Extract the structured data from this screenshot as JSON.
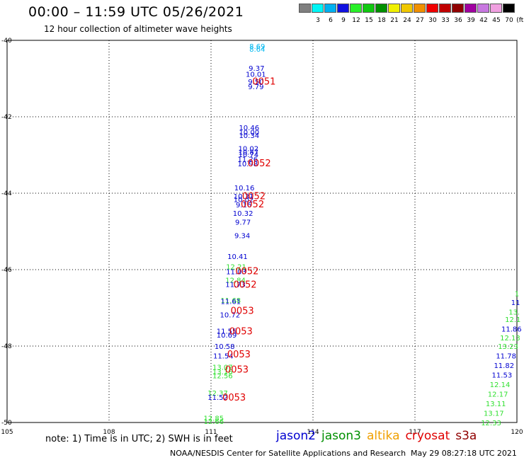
{
  "header": {
    "title": "00:00 – 11:59 UTC 05/26/2021",
    "subtitle": "12 hour collection of altimeter wave heights"
  },
  "colorbar": {
    "unit": "(ft)",
    "items": [
      {
        "label": "",
        "color": "#7f7f7f"
      },
      {
        "label": "3",
        "color": "#00f5f5"
      },
      {
        "label": "6",
        "color": "#00b0f0"
      },
      {
        "label": "9",
        "color": "#1010e0"
      },
      {
        "label": "12",
        "color": "#28f028"
      },
      {
        "label": "15",
        "color": "#10c810"
      },
      {
        "label": "18",
        "color": "#009000"
      },
      {
        "label": "21",
        "color": "#f0f000"
      },
      {
        "label": "24",
        "color": "#f0c800"
      },
      {
        "label": "27",
        "color": "#f09000"
      },
      {
        "label": "30",
        "color": "#f00000"
      },
      {
        "label": "33",
        "color": "#c00000"
      },
      {
        "label": "36",
        "color": "#900000"
      },
      {
        "label": "39",
        "color": "#a000a0"
      },
      {
        "label": "42",
        "color": "#c878e0"
      },
      {
        "label": "45",
        "color": "#f0a0e0"
      },
      {
        "label": "70",
        "color": "#000000"
      }
    ]
  },
  "footer": {
    "note": "note: 1) Time is in UTC; 2) SWH is in feet",
    "credit": "NOAA/NESDIS Center for Satellite Applications and Research",
    "timestamp": "May 29 08:27:18 UTC 2021"
  },
  "legend": [
    {
      "name": "jason2",
      "color": "#0000d0"
    },
    {
      "name": "jason3",
      "color": "#009000"
    },
    {
      "name": "altika",
      "color": "#f0a000"
    },
    {
      "name": "cryosat",
      "color": "#e00000"
    },
    {
      "name": "s3a",
      "color": "#900000"
    }
  ],
  "chart_data": {
    "type": "scatter",
    "xlim": [
      105,
      120
    ],
    "ylim": [
      -50,
      -40
    ],
    "x_ticks": [
      "105",
      "108",
      "111",
      "114",
      "117",
      "120"
    ],
    "y_ticks": [
      "-40",
      "-42",
      "-44",
      "-46",
      "-48",
      "-50"
    ],
    "grid": true,
    "point_colors": {
      "blue": "#0000d0",
      "cyan": "#00b8f0",
      "green": "#30e030",
      "red": "#e00000"
    },
    "points": [
      {
        "x": 112.36,
        "y": -40.15,
        "label": "8.69",
        "color": "cyan"
      },
      {
        "x": 112.36,
        "y": -40.22,
        "label": "8.64",
        "color": "cyan"
      },
      {
        "x": 112.34,
        "y": -40.72,
        "label": "9.37",
        "color": "blue"
      },
      {
        "x": 112.32,
        "y": -40.88,
        "label": "10.01",
        "color": "blue"
      },
      {
        "x": 112.32,
        "y": -41.07,
        "label": "9.50",
        "color": "blue"
      },
      {
        "x": 112.32,
        "y": -41.2,
        "label": "9.79",
        "color": "blue"
      },
      {
        "x": 112.12,
        "y": -42.28,
        "label": "10.46",
        "color": "blue"
      },
      {
        "x": 112.12,
        "y": -42.4,
        "label": "10.00",
        "color": "blue"
      },
      {
        "x": 112.12,
        "y": -42.48,
        "label": "10.34",
        "color": "blue"
      },
      {
        "x": 112.1,
        "y": -42.82,
        "label": "10.02",
        "color": "blue"
      },
      {
        "x": 112.1,
        "y": -42.92,
        "label": "10.87",
        "color": "blue"
      },
      {
        "x": 112.1,
        "y": -42.98,
        "label": "10.74",
        "color": "blue"
      },
      {
        "x": 112.08,
        "y": -43.1,
        "label": "11.26",
        "color": "blue"
      },
      {
        "x": 112.08,
        "y": -43.22,
        "label": "10.98",
        "color": "blue"
      },
      {
        "x": 111.98,
        "y": -43.85,
        "label": "10.16",
        "color": "blue"
      },
      {
        "x": 111.96,
        "y": -44.07,
        "label": "10.31",
        "color": "blue"
      },
      {
        "x": 111.96,
        "y": -44.16,
        "label": "10.02",
        "color": "blue"
      },
      {
        "x": 111.96,
        "y": -44.3,
        "label": "9.16",
        "color": "blue"
      },
      {
        "x": 111.94,
        "y": -44.52,
        "label": "10.32",
        "color": "blue"
      },
      {
        "x": 111.94,
        "y": -44.75,
        "label": "9.77",
        "color": "blue"
      },
      {
        "x": 111.92,
        "y": -45.1,
        "label": "9.34",
        "color": "blue"
      },
      {
        "x": 111.78,
        "y": -45.65,
        "label": "10.41",
        "color": "blue"
      },
      {
        "x": 111.74,
        "y": -45.92,
        "label": "12.21",
        "color": "green"
      },
      {
        "x": 111.74,
        "y": -46.05,
        "label": "11.03",
        "color": "blue"
      },
      {
        "x": 111.72,
        "y": -46.27,
        "label": "12.84",
        "color": "green"
      },
      {
        "x": 111.72,
        "y": -46.38,
        "label": "11.73",
        "color": "blue"
      },
      {
        "x": 111.58,
        "y": -46.8,
        "label": "11.68",
        "color": "green"
      },
      {
        "x": 111.58,
        "y": -46.82,
        "label": "11.61",
        "color": "blue"
      },
      {
        "x": 111.56,
        "y": -47.18,
        "label": "10.72",
        "color": "blue"
      },
      {
        "x": 111.46,
        "y": -47.6,
        "label": "11.55",
        "color": "blue"
      },
      {
        "x": 111.46,
        "y": -47.7,
        "label": "10.69",
        "color": "blue"
      },
      {
        "x": 111.4,
        "y": -48.0,
        "label": "10.58",
        "color": "blue"
      },
      {
        "x": 111.36,
        "y": -48.25,
        "label": "11.54",
        "color": "blue"
      },
      {
        "x": 111.34,
        "y": -48.55,
        "label": "13.07",
        "color": "green"
      },
      {
        "x": 111.34,
        "y": -48.67,
        "label": "13.16",
        "color": "green"
      },
      {
        "x": 111.34,
        "y": -48.77,
        "label": "12.56",
        "color": "green"
      },
      {
        "x": 111.2,
        "y": -49.22,
        "label": "12.37",
        "color": "green"
      },
      {
        "x": 111.2,
        "y": -49.33,
        "label": "11.52",
        "color": "blue"
      },
      {
        "x": 111.08,
        "y": -49.88,
        "label": "12.85",
        "color": "green"
      },
      {
        "x": 111.08,
        "y": -49.96,
        "label": "12.66",
        "color": "green"
      },
      {
        "x": 112.56,
        "y": -41.08,
        "label": "0051",
        "color": "red"
      },
      {
        "x": 112.42,
        "y": -43.22,
        "label": "0052",
        "color": "red"
      },
      {
        "x": 112.26,
        "y": -44.08,
        "label": "0052",
        "color": "red"
      },
      {
        "x": 112.22,
        "y": -44.3,
        "label": "0052",
        "color": "red"
      },
      {
        "x": 112.06,
        "y": -46.05,
        "label": "0052",
        "color": "red"
      },
      {
        "x": 112.0,
        "y": -46.4,
        "label": "0052",
        "color": "red"
      },
      {
        "x": 111.92,
        "y": -47.08,
        "label": "0053",
        "color": "red"
      },
      {
        "x": 111.88,
        "y": -47.62,
        "label": "0053",
        "color": "red"
      },
      {
        "x": 111.82,
        "y": -48.22,
        "label": "0053",
        "color": "red"
      },
      {
        "x": 111.76,
        "y": -48.62,
        "label": "0053",
        "color": "red"
      },
      {
        "x": 111.68,
        "y": -49.35,
        "label": "0053",
        "color": "red"
      },
      {
        "x": 120.0,
        "y": -46.62,
        "label": "1",
        "color": "green"
      },
      {
        "x": 119.96,
        "y": -46.85,
        "label": "11",
        "color": "blue"
      },
      {
        "x": 119.92,
        "y": -47.1,
        "label": "13.",
        "color": "green"
      },
      {
        "x": 119.88,
        "y": -47.3,
        "label": "12.1",
        "color": "green"
      },
      {
        "x": 119.84,
        "y": -47.55,
        "label": "11.86",
        "color": "blue"
      },
      {
        "x": 119.8,
        "y": -47.78,
        "label": "12.13",
        "color": "green"
      },
      {
        "x": 119.74,
        "y": -48.0,
        "label": "13.23",
        "color": "green"
      },
      {
        "x": 119.68,
        "y": -48.25,
        "label": "11.78",
        "color": "blue"
      },
      {
        "x": 119.62,
        "y": -48.5,
        "label": "11.82",
        "color": "blue"
      },
      {
        "x": 119.56,
        "y": -48.75,
        "label": "11.53",
        "color": "blue"
      },
      {
        "x": 119.5,
        "y": -49.0,
        "label": "12.14",
        "color": "green"
      },
      {
        "x": 119.44,
        "y": -49.25,
        "label": "12.17",
        "color": "green"
      },
      {
        "x": 119.38,
        "y": -49.5,
        "label": "13.11",
        "color": "green"
      },
      {
        "x": 119.32,
        "y": -49.75,
        "label": "13.17",
        "color": "green"
      },
      {
        "x": 119.24,
        "y": -50.0,
        "label": "12.33",
        "color": "green"
      }
    ]
  }
}
